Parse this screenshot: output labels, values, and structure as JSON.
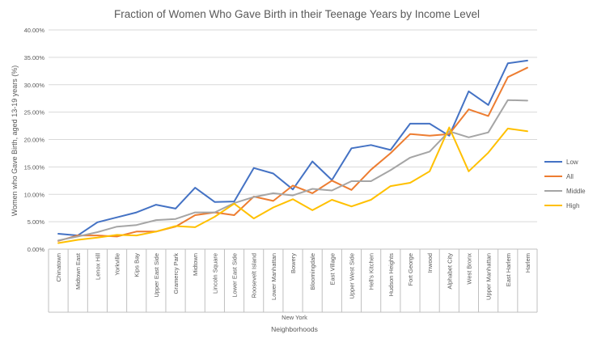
{
  "chart_data": {
    "type": "line",
    "title": "Fraction of Women  Who  Gave Birth in their Teenage Years by Income Level",
    "xlabel": "Neighborhoods",
    "x_group_label": "New York",
    "ylabel": "Women who Gave Birth, aged 13-19 years (%)",
    "ylim": [
      0,
      40
    ],
    "y_ticks": [
      "0.00%",
      "5.00%",
      "10.00%",
      "15.00%",
      "20.00%",
      "25.00%",
      "30.00%",
      "35.00%",
      "40.00%"
    ],
    "grid": true,
    "legend_position": "right",
    "categories": [
      "Chinatown",
      "Midtown East",
      "Lenox Hill",
      "Yorkville",
      "Kips Bay",
      "Upper East Side",
      "Gramercy Park",
      "Midtown",
      "Lincoln Square",
      "Lower East Side",
      "Roosevelt Island",
      "Lower Manhattan",
      "Bowery",
      "Bloomingdale",
      "East Village",
      "Upper West Side",
      "Hell's Kitchen",
      "Hudson Heights",
      "Fort George",
      "Inwood",
      "Alphabet City",
      "West Bronx",
      "Upper Manhattan",
      "East Harlem",
      "Harlem"
    ],
    "series": [
      {
        "name": "Low",
        "color": "#4472C4",
        "values": [
          2.8,
          2.5,
          4.9,
          5.8,
          6.7,
          8.1,
          7.4,
          11.2,
          8.6,
          8.7,
          14.8,
          13.8,
          10.9,
          16.0,
          12.6,
          18.4,
          19.0,
          18.1,
          22.9,
          22.9,
          20.7,
          28.8,
          26.3,
          33.9,
          34.4
        ]
      },
      {
        "name": "All",
        "color": "#ED7D31",
        "values": [
          1.5,
          2.5,
          2.5,
          2.3,
          3.2,
          3.2,
          4.1,
          6.2,
          6.7,
          6.2,
          9.6,
          8.8,
          11.6,
          10.2,
          12.5,
          10.8,
          14.5,
          17.5,
          21.0,
          20.7,
          21.0,
          25.5,
          24.3,
          31.4,
          33.1
        ]
      },
      {
        "name": "Middle",
        "color": "#A5A5A5",
        "values": [
          1.6,
          2.3,
          3.1,
          4.1,
          4.4,
          5.3,
          5.5,
          6.7,
          6.7,
          8.4,
          9.5,
          10.2,
          9.8,
          11.0,
          10.7,
          12.4,
          12.4,
          14.4,
          16.7,
          17.8,
          21.5,
          20.4,
          21.3,
          27.2,
          27.1
        ]
      },
      {
        "name": "High",
        "color": "#FFC000",
        "values": [
          1.1,
          1.7,
          2.1,
          2.6,
          2.5,
          3.2,
          4.2,
          4.0,
          5.9,
          8.3,
          5.6,
          7.6,
          9.1,
          7.1,
          9.0,
          7.8,
          9.0,
          11.5,
          12.1,
          14.2,
          22.2,
          14.2,
          17.6,
          22.0,
          21.5
        ]
      }
    ]
  }
}
